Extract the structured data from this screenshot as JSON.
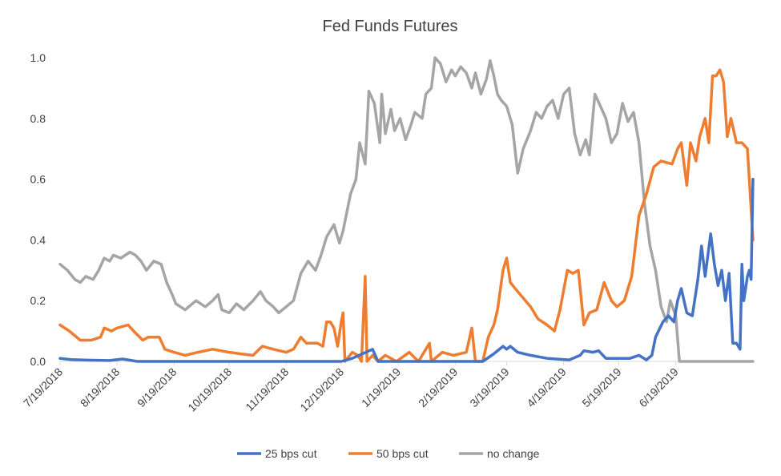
{
  "chart_data": {
    "type": "line",
    "title": "Fed Funds Futures",
    "xlabel": "",
    "ylabel": "",
    "x_range": [
      "2018-07-19",
      "2019-07-31"
    ],
    "x_ticks": [
      "7/19/2018",
      "8/19/2018",
      "9/19/2018",
      "10/19/2018",
      "11/19/2018",
      "12/19/2018",
      "1/19/2019",
      "2/19/2019",
      "3/19/2019",
      "4/19/2019",
      "5/19/2019",
      "6/19/2019"
    ],
    "ylim": [
      0,
      1.0
    ],
    "y_ticks": [
      "0.0",
      "0.2",
      "0.4",
      "0.6",
      "0.8",
      "1.0"
    ],
    "grid": false,
    "legend_position": "bottom",
    "series": [
      {
        "name": "25 bps cut",
        "color": "#4472C4",
        "points": [
          [
            "2018-07-19",
            0.01
          ],
          [
            "2018-07-25",
            0.006
          ],
          [
            "2018-08-05",
            0.004
          ],
          [
            "2018-08-15",
            0.003
          ],
          [
            "2018-08-22",
            0.008
          ],
          [
            "2018-08-30",
            0.0
          ],
          [
            "2018-12-19",
            0.0
          ],
          [
            "2018-12-25",
            0.01
          ],
          [
            "2019-01-05",
            0.04
          ],
          [
            "2019-01-08",
            0.0
          ],
          [
            "2019-03-06",
            0.0
          ],
          [
            "2019-03-12",
            0.025
          ],
          [
            "2019-03-17",
            0.05
          ],
          [
            "2019-03-19",
            0.04
          ],
          [
            "2019-03-21",
            0.05
          ],
          [
            "2019-03-25",
            0.03
          ],
          [
            "2019-04-01",
            0.02
          ],
          [
            "2019-04-10",
            0.01
          ],
          [
            "2019-04-22",
            0.005
          ],
          [
            "2019-04-28",
            0.02
          ],
          [
            "2019-04-30",
            0.035
          ],
          [
            "2019-05-05",
            0.03
          ],
          [
            "2019-05-08",
            0.035
          ],
          [
            "2019-05-12",
            0.01
          ],
          [
            "2019-05-25",
            0.01
          ],
          [
            "2019-05-30",
            0.02
          ],
          [
            "2019-06-03",
            0.005
          ],
          [
            "2019-06-06",
            0.02
          ],
          [
            "2019-06-08",
            0.08
          ],
          [
            "2019-06-12",
            0.13
          ],
          [
            "2019-06-15",
            0.15
          ],
          [
            "2019-06-18",
            0.13
          ],
          [
            "2019-06-20",
            0.2
          ],
          [
            "2019-06-22",
            0.24
          ],
          [
            "2019-06-25",
            0.16
          ],
          [
            "2019-06-28",
            0.15
          ],
          [
            "2019-07-01",
            0.27
          ],
          [
            "2019-07-03",
            0.38
          ],
          [
            "2019-07-05",
            0.28
          ],
          [
            "2019-07-08",
            0.42
          ],
          [
            "2019-07-10",
            0.32
          ],
          [
            "2019-07-12",
            0.25
          ],
          [
            "2019-07-14",
            0.3
          ],
          [
            "2019-07-16",
            0.2
          ],
          [
            "2019-07-18",
            0.29
          ],
          [
            "2019-07-20",
            0.06
          ],
          [
            "2019-07-22",
            0.06
          ],
          [
            "2019-07-24",
            0.04
          ],
          [
            "2019-07-25",
            0.32
          ],
          [
            "2019-07-26",
            0.2
          ],
          [
            "2019-07-28",
            0.28
          ],
          [
            "2019-07-29",
            0.3
          ],
          [
            "2019-07-30",
            0.27
          ],
          [
            "2019-07-31",
            0.6
          ]
        ]
      },
      {
        "name": "50 bps cut",
        "color": "#ED7D31",
        "points": [
          [
            "2018-07-19",
            0.12
          ],
          [
            "2018-07-24",
            0.1
          ],
          [
            "2018-07-30",
            0.07
          ],
          [
            "2018-08-05",
            0.07
          ],
          [
            "2018-08-10",
            0.08
          ],
          [
            "2018-08-12",
            0.11
          ],
          [
            "2018-08-16",
            0.1
          ],
          [
            "2018-08-19",
            0.11
          ],
          [
            "2018-08-25",
            0.12
          ],
          [
            "2018-08-28",
            0.1
          ],
          [
            "2018-09-02",
            0.07
          ],
          [
            "2018-09-05",
            0.08
          ],
          [
            "2018-09-11",
            0.08
          ],
          [
            "2018-09-14",
            0.04
          ],
          [
            "2018-09-19",
            0.03
          ],
          [
            "2018-09-25",
            0.02
          ],
          [
            "2018-10-02",
            0.03
          ],
          [
            "2018-10-10",
            0.04
          ],
          [
            "2018-10-19",
            0.03
          ],
          [
            "2018-10-25",
            0.025
          ],
          [
            "2018-11-01",
            0.02
          ],
          [
            "2018-11-06",
            0.05
          ],
          [
            "2018-11-12",
            0.04
          ],
          [
            "2018-11-19",
            0.03
          ],
          [
            "2018-11-23",
            0.04
          ],
          [
            "2018-11-27",
            0.08
          ],
          [
            "2018-11-30",
            0.06
          ],
          [
            "2018-12-06",
            0.06
          ],
          [
            "2018-12-09",
            0.05
          ],
          [
            "2018-12-11",
            0.13
          ],
          [
            "2018-12-13",
            0.13
          ],
          [
            "2018-12-15",
            0.11
          ],
          [
            "2018-12-17",
            0.05
          ],
          [
            "2018-12-19",
            0.13
          ],
          [
            "2018-12-20",
            0.16
          ],
          [
            "2018-12-21",
            0.0
          ],
          [
            "2018-12-25",
            0.03
          ],
          [
            "2018-12-28",
            0.02
          ],
          [
            "2018-12-30",
            0.0
          ],
          [
            "2019-01-01",
            0.28
          ],
          [
            "2019-01-02",
            0.0
          ],
          [
            "2019-01-05",
            0.02
          ],
          [
            "2019-01-08",
            0.0
          ],
          [
            "2019-01-12",
            0.02
          ],
          [
            "2019-01-18",
            0.0
          ],
          [
            "2019-01-25",
            0.03
          ],
          [
            "2019-01-30",
            0.0
          ],
          [
            "2019-02-05",
            0.06
          ],
          [
            "2019-02-06",
            0.0
          ],
          [
            "2019-02-12",
            0.03
          ],
          [
            "2019-02-18",
            0.02
          ],
          [
            "2019-02-25",
            0.03
          ],
          [
            "2019-02-28",
            0.11
          ],
          [
            "2019-03-02",
            0.0
          ],
          [
            "2019-03-06",
            0.0
          ],
          [
            "2019-03-09",
            0.08
          ],
          [
            "2019-03-12",
            0.12
          ],
          [
            "2019-03-14",
            0.17
          ],
          [
            "2019-03-17",
            0.3
          ],
          [
            "2019-03-19",
            0.34
          ],
          [
            "2019-03-21",
            0.26
          ],
          [
            "2019-03-25",
            0.23
          ],
          [
            "2019-04-01",
            0.18
          ],
          [
            "2019-04-05",
            0.14
          ],
          [
            "2019-04-10",
            0.12
          ],
          [
            "2019-04-14",
            0.1
          ],
          [
            "2019-04-17",
            0.17
          ],
          [
            "2019-04-21",
            0.3
          ],
          [
            "2019-04-24",
            0.29
          ],
          [
            "2019-04-27",
            0.3
          ],
          [
            "2019-04-30",
            0.12
          ],
          [
            "2019-05-03",
            0.16
          ],
          [
            "2019-05-07",
            0.17
          ],
          [
            "2019-05-11",
            0.26
          ],
          [
            "2019-05-15",
            0.2
          ],
          [
            "2019-05-18",
            0.18
          ],
          [
            "2019-05-22",
            0.2
          ],
          [
            "2019-05-26",
            0.28
          ],
          [
            "2019-05-30",
            0.48
          ],
          [
            "2019-06-03",
            0.55
          ],
          [
            "2019-06-07",
            0.64
          ],
          [
            "2019-06-11",
            0.66
          ],
          [
            "2019-06-17",
            0.65
          ],
          [
            "2019-06-20",
            0.7
          ],
          [
            "2019-06-22",
            0.72
          ],
          [
            "2019-06-25",
            0.58
          ],
          [
            "2019-06-27",
            0.72
          ],
          [
            "2019-06-30",
            0.66
          ],
          [
            "2019-07-02",
            0.74
          ],
          [
            "2019-07-05",
            0.8
          ],
          [
            "2019-07-07",
            0.72
          ],
          [
            "2019-07-09",
            0.94
          ],
          [
            "2019-07-11",
            0.94
          ],
          [
            "2019-07-13",
            0.96
          ],
          [
            "2019-07-15",
            0.92
          ],
          [
            "2019-07-17",
            0.74
          ],
          [
            "2019-07-19",
            0.8
          ],
          [
            "2019-07-22",
            0.72
          ],
          [
            "2019-07-25",
            0.72
          ],
          [
            "2019-07-28",
            0.7
          ],
          [
            "2019-07-31",
            0.4
          ]
        ]
      },
      {
        "name": "no change",
        "color": "#A5A5A5",
        "points": [
          [
            "2018-07-19",
            0.32
          ],
          [
            "2018-07-23",
            0.3
          ],
          [
            "2018-07-27",
            0.27
          ],
          [
            "2018-07-30",
            0.26
          ],
          [
            "2018-08-02",
            0.28
          ],
          [
            "2018-08-06",
            0.27
          ],
          [
            "2018-08-09",
            0.3
          ],
          [
            "2018-08-12",
            0.34
          ],
          [
            "2018-08-15",
            0.33
          ],
          [
            "2018-08-17",
            0.35
          ],
          [
            "2018-08-21",
            0.34
          ],
          [
            "2018-08-26",
            0.36
          ],
          [
            "2018-08-29",
            0.35
          ],
          [
            "2018-09-01",
            0.33
          ],
          [
            "2018-09-04",
            0.3
          ],
          [
            "2018-09-08",
            0.33
          ],
          [
            "2018-09-12",
            0.32
          ],
          [
            "2018-09-15",
            0.26
          ],
          [
            "2018-09-18",
            0.22
          ],
          [
            "2018-09-20",
            0.19
          ],
          [
            "2018-09-25",
            0.17
          ],
          [
            "2018-10-01",
            0.2
          ],
          [
            "2018-10-06",
            0.18
          ],
          [
            "2018-10-10",
            0.2
          ],
          [
            "2018-10-13",
            0.22
          ],
          [
            "2018-10-15",
            0.17
          ],
          [
            "2018-10-19",
            0.16
          ],
          [
            "2018-10-23",
            0.19
          ],
          [
            "2018-10-27",
            0.17
          ],
          [
            "2018-11-01",
            0.2
          ],
          [
            "2018-11-05",
            0.23
          ],
          [
            "2018-11-08",
            0.2
          ],
          [
            "2018-11-12",
            0.18
          ],
          [
            "2018-11-15",
            0.16
          ],
          [
            "2018-11-19",
            0.18
          ],
          [
            "2018-11-23",
            0.2
          ],
          [
            "2018-11-27",
            0.29
          ],
          [
            "2018-12-01",
            0.33
          ],
          [
            "2018-12-05",
            0.3
          ],
          [
            "2018-12-08",
            0.35
          ],
          [
            "2018-12-11",
            0.41
          ],
          [
            "2018-12-15",
            0.45
          ],
          [
            "2018-12-18",
            0.39
          ],
          [
            "2018-12-20",
            0.43
          ],
          [
            "2018-12-24",
            0.55
          ],
          [
            "2018-12-27",
            0.6
          ],
          [
            "2018-12-29",
            0.72
          ],
          [
            "2019-01-01",
            0.65
          ],
          [
            "2019-01-03",
            0.89
          ],
          [
            "2019-01-06",
            0.85
          ],
          [
            "2019-01-09",
            0.72
          ],
          [
            "2019-01-10",
            0.88
          ],
          [
            "2019-01-12",
            0.75
          ],
          [
            "2019-01-15",
            0.83
          ],
          [
            "2019-01-17",
            0.76
          ],
          [
            "2019-01-20",
            0.8
          ],
          [
            "2019-01-23",
            0.73
          ],
          [
            "2019-01-26",
            0.78
          ],
          [
            "2019-01-28",
            0.82
          ],
          [
            "2019-02-01",
            0.8
          ],
          [
            "2019-02-03",
            0.88
          ],
          [
            "2019-02-06",
            0.9
          ],
          [
            "2019-02-08",
            1.0
          ],
          [
            "2019-02-11",
            0.98
          ],
          [
            "2019-02-14",
            0.92
          ],
          [
            "2019-02-17",
            0.96
          ],
          [
            "2019-02-19",
            0.94
          ],
          [
            "2019-02-22",
            0.97
          ],
          [
            "2019-02-25",
            0.95
          ],
          [
            "2019-02-28",
            0.9
          ],
          [
            "2019-03-02",
            0.95
          ],
          [
            "2019-03-05",
            0.88
          ],
          [
            "2019-03-08",
            0.93
          ],
          [
            "2019-03-10",
            0.99
          ],
          [
            "2019-03-12",
            0.94
          ],
          [
            "2019-03-14",
            0.88
          ],
          [
            "2019-03-16",
            0.86
          ],
          [
            "2019-03-19",
            0.84
          ],
          [
            "2019-03-22",
            0.78
          ],
          [
            "2019-03-25",
            0.62
          ],
          [
            "2019-03-28",
            0.7
          ],
          [
            "2019-04-01",
            0.76
          ],
          [
            "2019-04-04",
            0.82
          ],
          [
            "2019-04-07",
            0.8
          ],
          [
            "2019-04-10",
            0.84
          ],
          [
            "2019-04-13",
            0.86
          ],
          [
            "2019-04-16",
            0.8
          ],
          [
            "2019-04-19",
            0.88
          ],
          [
            "2019-04-22",
            0.9
          ],
          [
            "2019-04-25",
            0.75
          ],
          [
            "2019-04-28",
            0.68
          ],
          [
            "2019-05-01",
            0.73
          ],
          [
            "2019-05-03",
            0.68
          ],
          [
            "2019-05-06",
            0.88
          ],
          [
            "2019-05-09",
            0.84
          ],
          [
            "2019-05-12",
            0.8
          ],
          [
            "2019-05-15",
            0.72
          ],
          [
            "2019-05-18",
            0.75
          ],
          [
            "2019-05-21",
            0.85
          ],
          [
            "2019-05-24",
            0.79
          ],
          [
            "2019-05-27",
            0.82
          ],
          [
            "2019-05-30",
            0.72
          ],
          [
            "2019-06-02",
            0.52
          ],
          [
            "2019-06-05",
            0.38
          ],
          [
            "2019-06-08",
            0.3
          ],
          [
            "2019-06-11",
            0.18
          ],
          [
            "2019-06-14",
            0.13
          ],
          [
            "2019-06-16",
            0.2
          ],
          [
            "2019-06-19",
            0.15
          ],
          [
            "2019-06-21",
            0.0
          ],
          [
            "2019-07-31",
            0.0
          ]
        ]
      }
    ]
  }
}
